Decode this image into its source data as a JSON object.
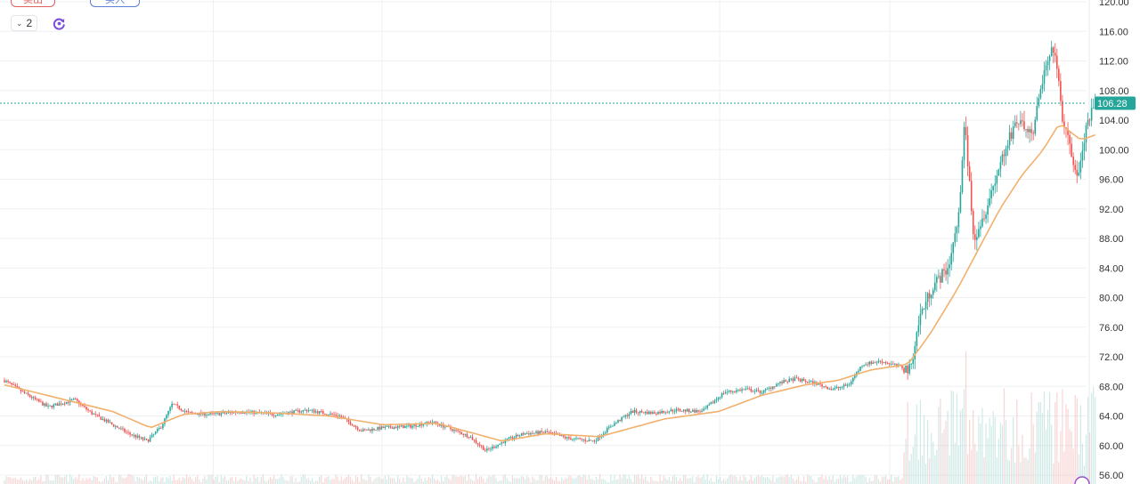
{
  "toolbar": {
    "sell_label": "卖出",
    "buy_label": "买入",
    "interval_value": "2"
  },
  "colors": {
    "up": "#26a69a",
    "down": "#ef5350",
    "ma": "#f2b06c",
    "grid": "#eef0f3",
    "badge": "#26a69a"
  },
  "icons": [
    "chevron-down-icon",
    "refresh-icon",
    "settings-icon"
  ],
  "chart_data": {
    "type": "candlestick",
    "y_axis": {
      "ticks": [
        "120.00",
        "116.00",
        "112.00",
        "108.00",
        "104.00",
        "100.00",
        "96.00",
        "92.00",
        "88.00",
        "84.00",
        "80.00",
        "76.00",
        "72.00",
        "68.00",
        "64.00",
        "60.00",
        "56.00"
      ],
      "range": [
        56,
        120
      ]
    },
    "last_price": "106.28",
    "price_keypoints": [
      [
        0,
        68.8
      ],
      [
        1.5,
        67.4
      ],
      [
        4,
        65.2
      ],
      [
        6.5,
        66.2
      ],
      [
        8,
        64.4
      ],
      [
        10,
        62.8
      ],
      [
        11.5,
        61.6
      ],
      [
        13.2,
        60.6
      ],
      [
        14.5,
        62.6
      ],
      [
        15.5,
        65.6
      ],
      [
        17,
        64.4
      ],
      [
        19,
        64.2
      ],
      [
        22,
        64.6
      ],
      [
        25,
        64.2
      ],
      [
        28,
        64.8
      ],
      [
        31,
        64.0
      ],
      [
        33,
        62.0
      ],
      [
        35,
        62.4
      ],
      [
        37.5,
        62.6
      ],
      [
        39.5,
        63.2
      ],
      [
        41,
        62.4
      ],
      [
        43,
        61.2
      ],
      [
        44.5,
        59.3
      ],
      [
        46.5,
        60.8
      ],
      [
        48,
        61.6
      ],
      [
        50,
        61.8
      ],
      [
        52,
        61.0
      ],
      [
        54.5,
        60.6
      ],
      [
        56,
        62.6
      ],
      [
        58,
        64.6
      ],
      [
        60,
        64.4
      ],
      [
        62,
        64.8
      ],
      [
        64.5,
        64.6
      ],
      [
        66.5,
        67.2
      ],
      [
        68.5,
        67.6
      ],
      [
        70,
        67.2
      ],
      [
        71.5,
        68.4
      ],
      [
        73,
        69.0
      ],
      [
        75,
        68.4
      ],
      [
        76.5,
        67.6
      ],
      [
        78,
        68.2
      ],
      [
        79.3,
        71.0
      ],
      [
        81,
        71.4
      ],
      [
        82.5,
        70.8
      ],
      [
        83.7,
        70.2
      ],
      [
        84.6,
        77.5
      ],
      [
        85.8,
        81.6
      ],
      [
        87.2,
        84.0
      ],
      [
        88.2,
        91.0
      ],
      [
        88.7,
        104.0
      ],
      [
        89.6,
        88.0
      ],
      [
        90.7,
        92.0
      ],
      [
        92.0,
        98.0
      ],
      [
        93.5,
        104.0
      ],
      [
        95.0,
        102.0
      ],
      [
        96.0,
        110.0
      ],
      [
        97.0,
        114.0
      ],
      [
        97.8,
        104.0
      ],
      [
        98.5,
        100.0
      ],
      [
        99.2,
        96.0
      ],
      [
        100,
        103.0
      ],
      [
        100.8,
        106.3
      ]
    ],
    "ma_keypoints": [
      [
        0,
        68.2
      ],
      [
        5,
        66.4
      ],
      [
        10,
        64.6
      ],
      [
        13.5,
        62.4
      ],
      [
        16.5,
        64.2
      ],
      [
        20,
        64.6
      ],
      [
        25,
        64.4
      ],
      [
        30,
        64.0
      ],
      [
        35,
        62.8
      ],
      [
        40,
        63.0
      ],
      [
        43,
        61.8
      ],
      [
        46,
        60.6
      ],
      [
        50,
        61.6
      ],
      [
        55,
        61.2
      ],
      [
        58,
        62.4
      ],
      [
        61,
        63.6
      ],
      [
        66,
        64.6
      ],
      [
        70,
        66.8
      ],
      [
        74,
        68.2
      ],
      [
        77,
        68.8
      ],
      [
        80,
        70.2
      ],
      [
        83.5,
        71.0
      ],
      [
        85.5,
        75.0
      ],
      [
        88,
        81.0
      ],
      [
        90,
        86.5
      ],
      [
        92,
        92.0
      ],
      [
        94,
        96.5
      ],
      [
        96,
        100.0
      ],
      [
        97.5,
        103.6
      ],
      [
        98.5,
        102.4
      ],
      [
        99.5,
        101.3
      ],
      [
        100.8,
        102.0
      ]
    ]
  }
}
